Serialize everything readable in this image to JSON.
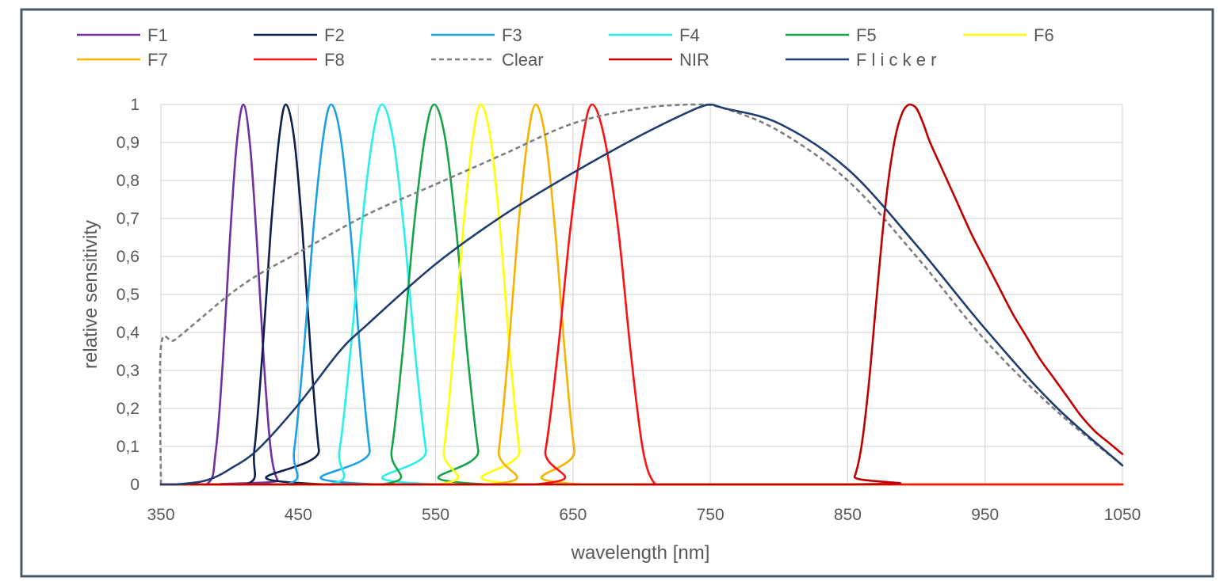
{
  "chart_data": {
    "type": "line",
    "title": "",
    "xlabel": "wavelength [nm]",
    "ylabel": "relative sensitivity",
    "xlim": [
      350,
      1050
    ],
    "ylim": [
      0,
      1
    ],
    "x_ticks": [
      "350",
      "450",
      "550",
      "650",
      "750",
      "850",
      "950",
      "1050"
    ],
    "y_ticks": [
      "0",
      "0,1",
      "0,2",
      "0,3",
      "0,4",
      "0,5",
      "0,6",
      "0,7",
      "0,8",
      "0,9",
      "1"
    ],
    "grid": true,
    "legend_position": "top",
    "frame_color": "#4a5968",
    "series": [
      {
        "name": "F1",
        "color": "#7030a0",
        "dash": false,
        "x": [
          350,
          383,
          390,
          395,
          400,
          405,
          410,
          415,
          420,
          425,
          430,
          435,
          440,
          1050
        ],
        "y": [
          0,
          0,
          0.09,
          0.32,
          0.63,
          0.89,
          1,
          0.89,
          0.63,
          0.32,
          0.09,
          0.01,
          0,
          0
        ]
      },
      {
        "name": "F2",
        "color": "#0d1f4d",
        "dash": false,
        "x": [
          350,
          412,
          418,
          424,
          430,
          436,
          441,
          447,
          453,
          459,
          465,
          471,
          1050
        ],
        "y": [
          0,
          0,
          0.09,
          0.35,
          0.67,
          0.91,
          1,
          0.91,
          0.67,
          0.35,
          0.09,
          0,
          0
        ]
      },
      {
        "name": "F3",
        "color": "#1ba1e2",
        "dash": false,
        "x": [
          350,
          441,
          447,
          454,
          461,
          468,
          474,
          481,
          488,
          495,
          502,
          508,
          1050
        ],
        "y": [
          0,
          0,
          0.09,
          0.35,
          0.67,
          0.91,
          1,
          0.91,
          0.67,
          0.35,
          0.09,
          0,
          0
        ]
      },
      {
        "name": "F4",
        "color": "#26f0ee",
        "dash": false,
        "x": [
          350,
          472,
          480,
          488,
          496,
          504,
          511,
          519,
          527,
          535,
          543,
          550,
          1050
        ],
        "y": [
          0,
          0,
          0.09,
          0.35,
          0.67,
          0.91,
          1,
          0.91,
          0.67,
          0.35,
          0.09,
          0,
          0
        ]
      },
      {
        "name": "F5",
        "color": "#17a34a",
        "dash": false,
        "x": [
          350,
          511,
          518,
          526,
          534,
          542,
          549,
          557,
          565,
          573,
          581,
          588,
          1050
        ],
        "y": [
          0,
          0,
          0.09,
          0.35,
          0.67,
          0.91,
          1,
          0.91,
          0.67,
          0.35,
          0.09,
          0,
          0
        ]
      },
      {
        "name": "F6",
        "color": "#ffff00",
        "dash": false,
        "x": [
          350,
          550,
          556,
          563,
          570,
          577,
          583,
          590,
          597,
          604,
          611,
          617,
          1050
        ],
        "y": [
          0,
          0,
          0.09,
          0.35,
          0.67,
          0.91,
          1,
          0.91,
          0.67,
          0.35,
          0.09,
          0,
          0
        ]
      },
      {
        "name": "F7",
        "color": "#f5b400",
        "dash": false,
        "x": [
          350,
          590,
          596,
          603,
          610,
          617,
          623,
          630,
          637,
          644,
          651,
          658,
          1050
        ],
        "y": [
          0,
          0,
          0.09,
          0.35,
          0.67,
          0.91,
          1,
          0.91,
          0.67,
          0.35,
          0.09,
          0,
          0
        ]
      },
      {
        "name": "F8",
        "color": "#ff1010",
        "dash": false,
        "x": [
          350,
          622,
          630,
          639,
          648,
          657,
          664,
          673,
          683,
          692,
          701,
          710,
          722,
          1050
        ],
        "y": [
          0,
          0,
          0.09,
          0.35,
          0.67,
          0.91,
          1,
          0.91,
          0.67,
          0.35,
          0.09,
          0,
          0,
          0
        ]
      },
      {
        "name": "Clear",
        "color": "#7f7f7f",
        "dash": true,
        "x": [
          350,
          350,
          360,
          380,
          400,
          420,
          450,
          500,
          550,
          600,
          650,
          700,
          740,
          760,
          800,
          850,
          900,
          950,
          1000,
          1050
        ],
        "y": [
          0,
          0.36,
          0.38,
          0.44,
          0.5,
          0.55,
          0.61,
          0.71,
          0.79,
          0.87,
          0.95,
          0.99,
          1,
          0.99,
          0.93,
          0.8,
          0.6,
          0.38,
          0.2,
          0.05
        ]
      },
      {
        "name": "NIR",
        "color": "#c00000",
        "dash": false,
        "x": [
          350,
          850,
          855,
          860,
          865,
          870,
          875,
          880,
          885,
          890,
          895,
          900,
          905,
          910,
          920,
          930,
          940,
          950,
          960,
          970,
          980,
          990,
          1000,
          1010,
          1020,
          1030,
          1040,
          1050
        ],
        "y": [
          0,
          0,
          0.02,
          0.1,
          0.25,
          0.45,
          0.65,
          0.81,
          0.92,
          0.98,
          1,
          0.99,
          0.95,
          0.9,
          0.82,
          0.74,
          0.66,
          0.59,
          0.52,
          0.45,
          0.39,
          0.33,
          0.28,
          0.23,
          0.18,
          0.14,
          0.11,
          0.08
        ]
      },
      {
        "name": "F l i c k e r",
        "color": "#203d70",
        "dash": false,
        "x": [
          350,
          360,
          370,
          380,
          390,
          400,
          420,
          450,
          480,
          500,
          550,
          600,
          650,
          700,
          740,
          750,
          760,
          800,
          850,
          900,
          950,
          1000,
          1050
        ],
        "y": [
          0,
          0,
          0.003,
          0.008,
          0.02,
          0.04,
          0.09,
          0.21,
          0.35,
          0.42,
          0.58,
          0.71,
          0.82,
          0.92,
          0.99,
          1,
          0.99,
          0.95,
          0.83,
          0.63,
          0.41,
          0.21,
          0.05
        ]
      }
    ]
  }
}
